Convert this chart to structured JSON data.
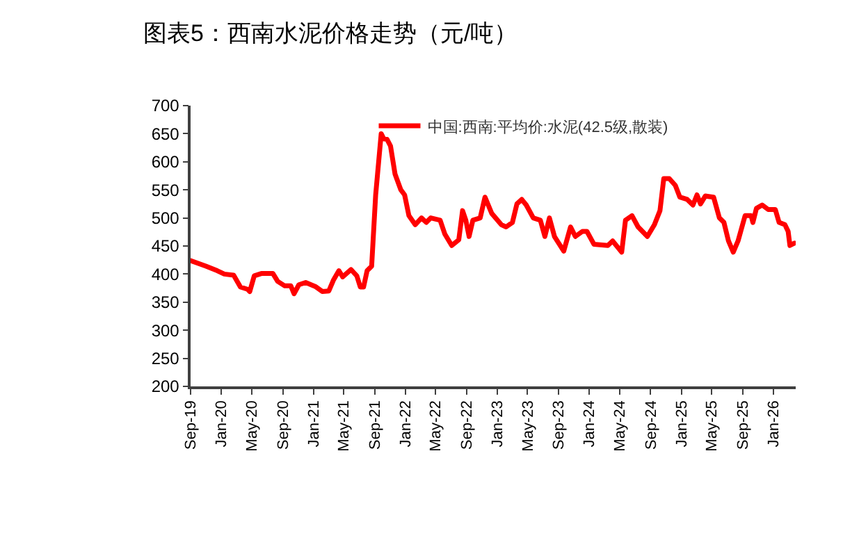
{
  "chart_data": {
    "type": "line",
    "title": "图表5：西南水泥价格走势（元/吨）",
    "x": [
      "2019-09-01",
      "2019-11-01",
      "2019-12-16",
      "2020-01-13",
      "2020-02-19",
      "2020-03-17",
      "2020-04-14",
      "2020-04-23",
      "2020-05-11",
      "2020-06-08",
      "2020-07-24",
      "2020-08-12",
      "2020-09-09",
      "2020-10-03",
      "2020-10-16",
      "2020-11-04",
      "2020-12-01",
      "2021-01-08",
      "2021-02-05",
      "2021-03-03",
      "2021-03-21",
      "2021-04-12",
      "2021-04-27",
      "2021-05-30",
      "2021-06-22",
      "2021-07-06",
      "2021-07-19",
      "2021-08-02",
      "2021-08-20",
      "2021-09-05",
      "2021-09-27",
      "2021-10-07",
      "2021-10-20",
      "2021-11-03",
      "2021-11-21",
      "2021-12-14",
      "2021-12-29",
      "2022-01-15",
      "2022-02-09",
      "2022-03-06",
      "2022-03-25",
      "2022-04-12",
      "2022-05-19",
      "2022-06-07",
      "2022-07-04",
      "2022-08-01",
      "2022-08-16",
      "2022-08-29",
      "2022-09-11",
      "2022-09-26",
      "2022-10-25",
      "2022-11-13",
      "2022-12-10",
      "2023-01-17",
      "2023-02-05",
      "2023-03-02",
      "2023-03-20",
      "2023-04-08",
      "2023-04-26",
      "2023-05-24",
      "2023-06-21",
      "2023-07-09",
      "2023-07-27",
      "2023-08-16",
      "2023-09-22",
      "2023-10-19",
      "2023-11-07",
      "2023-12-05",
      "2023-12-23",
      "2024-01-20",
      "2024-03-15",
      "2024-04-03",
      "2024-05-09",
      "2024-05-24",
      "2024-06-19",
      "2024-07-13",
      "2024-08-19",
      "2024-09-16",
      "2024-10-08",
      "2024-10-23",
      "2024-11-14",
      "2024-12-08",
      "2024-12-26",
      "2025-01-24",
      "2025-02-16",
      "2025-03-04",
      "2025-03-18",
      "2025-04-06",
      "2025-05-09",
      "2025-06-01",
      "2025-06-19",
      "2025-07-07",
      "2025-07-26",
      "2025-08-14",
      "2025-09-11",
      "2025-10-05",
      "2025-10-12",
      "2025-10-26",
      "2025-11-18",
      "2025-12-12",
      "2026-01-09",
      "2026-01-24",
      "2026-02-16",
      "2026-03-01",
      "2026-03-08",
      "2026-03-26"
    ],
    "series": [
      {
        "name": "中国:西南:平均价:水泥(42.5级,散装)",
        "color": "#ff0000",
        "values": [
          424,
          414,
          406,
          400,
          398,
          377,
          373,
          369,
          397,
          401,
          401,
          387,
          379,
          379,
          365,
          381,
          385,
          378,
          369,
          370,
          389,
          406,
          395,
          408,
          397,
          377,
          377,
          406,
          414,
          541,
          650,
          641,
          640,
          628,
          578,
          550,
          541,
          504,
          488,
          500,
          492,
          500,
          496,
          471,
          451,
          461,
          513,
          496,
          467,
          496,
          500,
          537,
          508,
          488,
          484,
          492,
          525,
          533,
          523,
          500,
          496,
          467,
          500,
          467,
          441,
          484,
          467,
          476,
          476,
          453,
          451,
          459,
          439,
          496,
          504,
          484,
          467,
          488,
          513,
          570,
          570,
          558,
          537,
          533,
          523,
          541,
          525,
          539,
          537,
          500,
          492,
          459,
          439,
          459,
          504,
          504,
          492,
          517,
          523,
          515,
          515,
          492,
          488,
          476,
          451,
          455
        ]
      }
    ],
    "xlim": [
      "2019-09-01",
      "2026-03-31"
    ],
    "xticks": [
      {
        "value": "2019-09-01",
        "label": "Sep-19"
      },
      {
        "value": "2020-01-01",
        "label": "Jan-20"
      },
      {
        "value": "2020-05-01",
        "label": "May-20"
      },
      {
        "value": "2020-09-01",
        "label": "Sep-20"
      },
      {
        "value": "2021-01-01",
        "label": "Jan-21"
      },
      {
        "value": "2021-05-01",
        "label": "May-21"
      },
      {
        "value": "2021-09-01",
        "label": "Sep-21"
      },
      {
        "value": "2022-01-01",
        "label": "Jan-22"
      },
      {
        "value": "2022-05-01",
        "label": "May-22"
      },
      {
        "value": "2022-09-01",
        "label": "Sep-22"
      },
      {
        "value": "2023-01-01",
        "label": "Jan-23"
      },
      {
        "value": "2023-05-01",
        "label": "May-23"
      },
      {
        "value": "2023-09-01",
        "label": "Sep-23"
      },
      {
        "value": "2024-01-01",
        "label": "Jan-24"
      },
      {
        "value": "2024-05-01",
        "label": "May-24"
      },
      {
        "value": "2024-09-01",
        "label": "Sep-24"
      },
      {
        "value": "2025-01-01",
        "label": "Jan-25"
      },
      {
        "value": "2025-05-01",
        "label": "May-25"
      },
      {
        "value": "2025-09-01",
        "label": "Sep-25"
      },
      {
        "value": "2026-01-01",
        "label": "Jan-26"
      }
    ],
    "ylim": [
      200,
      700
    ],
    "yticks": [
      200,
      250,
      300,
      350,
      400,
      450,
      500,
      550,
      600,
      650,
      700
    ],
    "legend": "top",
    "marker": "none",
    "line_style": "solid"
  }
}
